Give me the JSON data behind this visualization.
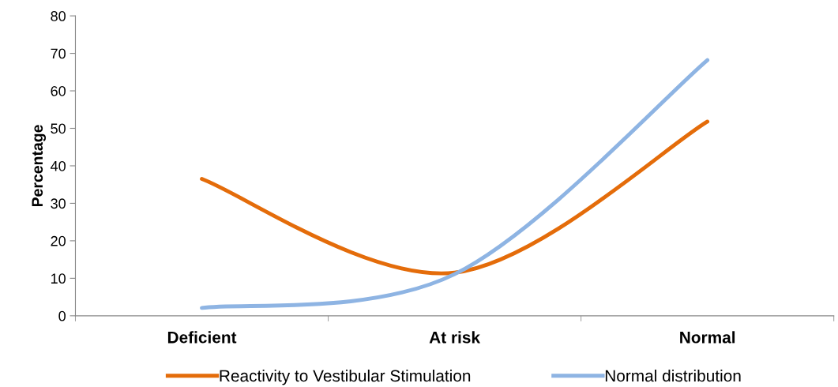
{
  "chart_data": {
    "type": "line",
    "ylabel": "Percentage",
    "categories": [
      "Deficient",
      "At risk",
      "Normal"
    ],
    "series": [
      {
        "name": "Reactivity to Vestibular Stimulation",
        "color": "#e46c0a",
        "values": [
          36.5,
          11.5,
          51.8
        ]
      },
      {
        "name": "Normal distribution",
        "color": "#8eb4e3",
        "values": [
          2.1,
          11.1,
          68.2
        ]
      }
    ],
    "ylim": [
      0,
      80
    ],
    "yticks": [
      0,
      10,
      20,
      30,
      40,
      50,
      60,
      70,
      80
    ],
    "grid": false,
    "legend": "bottom",
    "marker": "none",
    "line_style": "solid"
  }
}
